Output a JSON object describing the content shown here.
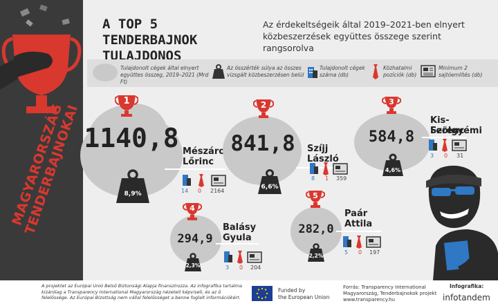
{
  "band_text": "MAGYARORSZÁG TENDERBAJNOKAI",
  "title": "A TOP 5 TENDERBAJNOK TULAJDONOS",
  "subtitle": "Az érdekeltségeik által 2019–2021-ben elnyert közbeszerzések együttes összege szerint rangsorolva",
  "legend": {
    "sum": "Tulajdonolt cégek által elnyert együttes összeg, 2019–2021 (Mrd Ft)",
    "share": "Az összérték súlya az összes vizsgált közbeszerzésen belül",
    "companies": "Tulajdonolt cégek száma (db)",
    "positions": "Közhatalmi pozíciók (db)",
    "press": "Minimum 2 sajtóemlítés (db)"
  },
  "entries": [
    {
      "rank": "1",
      "value": "1140,8",
      "name1": "Mészáros",
      "name2": "Lőrinc",
      "share": "8,9%",
      "companies": "14",
      "positions": "0",
      "press": "2164"
    },
    {
      "rank": "2",
      "value": "841,8",
      "name1": "Szíjj",
      "name2": "László",
      "share": "6,6%",
      "companies": "8",
      "positions": "1",
      "press": "359"
    },
    {
      "rank": "3",
      "value": "584,8",
      "name1": "Kis-Szölgyémi",
      "name2": "Ferenc",
      "share": "4,6%",
      "companies": "3",
      "positions": "0",
      "press": "31"
    },
    {
      "rank": "4",
      "value": "294,9",
      "name1": "Balásy",
      "name2": "Gyula",
      "share": "2,3%",
      "companies": "3",
      "positions": "0",
      "press": "204"
    },
    {
      "rank": "5",
      "value": "282,0",
      "name1": "Paár",
      "name2": "Attila",
      "share": "2,2%",
      "companies": "5",
      "positions": "0",
      "press": "197"
    }
  ],
  "footer": {
    "disclaimer": "A projektet az Európai Unió Belső Biztonsági Alapja finanszírozza. Az infografika tartalma kizárólag a Transparency International Magyarország nézeteit képviseli, és az ő felelőssége. Az Európai Bizottság nem vállal felelősséget a benne foglalt információkért.",
    "funded1": "Funded by",
    "funded2": "the European Union",
    "source1": "Forrás: Transparency International",
    "source2": "Magyarország, Tenderbajnokok projekt",
    "source3": "www.transparency.hu",
    "credit_label": "Infografika:",
    "credit_name": "infotandem"
  },
  "colors": {
    "accent": "#d9382f",
    "dark": "#3a3a3a",
    "blob": "#c9c9c9",
    "blue": "#2f78c4"
  }
}
